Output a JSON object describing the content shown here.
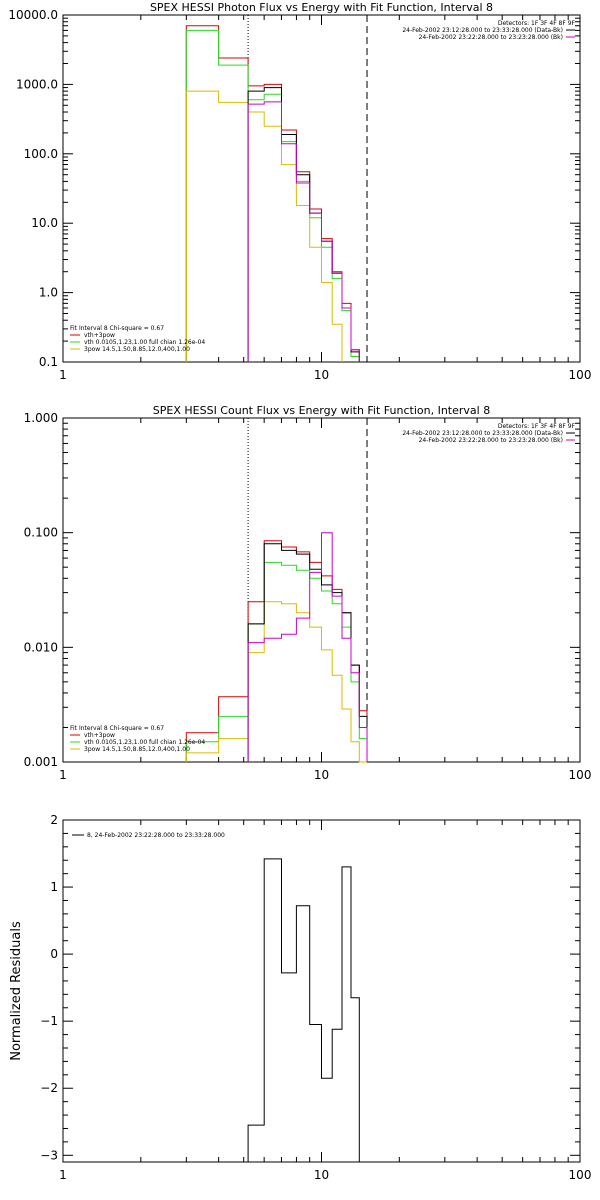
{
  "colors": {
    "red": "#dd0000",
    "green": "#22dd22",
    "yellow": "#ddbb00",
    "magenta": "#cc00cc",
    "black": "#000000"
  },
  "chart_data": [
    {
      "type": "line",
      "title": "SPEX HESSI Photon Flux vs Energy with Fit Function, Interval 8",
      "xscale": "log",
      "yscale": "log",
      "xlim": [
        1,
        100
      ],
      "ylim": [
        0.1,
        10000
      ],
      "xticks": [
        "1",
        "10",
        "100"
      ],
      "yticks": [
        "0.1",
        "1.0",
        "10.0",
        "100.0",
        "1000.0",
        "10000.0"
      ],
      "vlines": [
        {
          "x": 5.2,
          "style": "dotted"
        },
        {
          "x": 15.0,
          "style": "dashed"
        }
      ],
      "fit_lines": [
        "Fit Interval 8   Chi-square = 0.67",
        "vth+3pow",
        "vth 0.0105,1.23,1.00  full chian 1.26e-04",
        "3pow 14.5,1.50,8.85,12.0,400,1.00"
      ],
      "legend_right": [
        "Detectors: 1F 3F 4F 8F 9F",
        "24-Feb-2002 23:12:28.000 to 23:33:28.000 (Data-Bk)",
        "24-Feb-2002 23:22:28.000 to 23:23:28.000 (Bk)"
      ],
      "bin_edges": [
        3,
        4,
        5.2,
        6,
        7,
        8,
        9,
        10,
        11,
        12,
        13,
        14,
        15,
        16
      ],
      "series": [
        {
          "color": "red",
          "values": [
            7000,
            2400,
            950,
            1000,
            220,
            55,
            16,
            6,
            2,
            0.7,
            0.15,
            null,
            null
          ]
        },
        {
          "color": "green",
          "values": [
            6000,
            1900,
            600,
            720,
            150,
            40,
            12,
            4.5,
            1.6,
            0.55,
            0.12,
            null,
            null
          ]
        },
        {
          "color": "yellow",
          "values": [
            800,
            550,
            400,
            250,
            70,
            18,
            4.5,
            1.4,
            0.35,
            null,
            null,
            null,
            null
          ]
        },
        {
          "color": "black",
          "values": [
            null,
            null,
            800,
            900,
            190,
            50,
            14,
            5.5,
            1.9,
            0.6,
            0.14,
            null,
            null
          ]
        },
        {
          "color": "magenta",
          "values": [
            null,
            null,
            520,
            560,
            140,
            38,
            14,
            5.5,
            1.9,
            0.6,
            0.15,
            null,
            null
          ]
        }
      ]
    },
    {
      "type": "line",
      "title": "SPEX HESSI Count Flux vs Energy with Fit Function, Interval 8",
      "xscale": "log",
      "yscale": "log",
      "xlim": [
        1,
        100
      ],
      "ylim": [
        0.001,
        1
      ],
      "xticks": [
        "1",
        "10",
        "100"
      ],
      "yticks": [
        "0.001",
        "0.010",
        "0.100",
        "1.000"
      ],
      "vlines": [
        {
          "x": 5.2,
          "style": "dotted"
        },
        {
          "x": 15.0,
          "style": "dashed"
        }
      ],
      "fit_lines": [
        "Fit Interval 8   Chi-square = 0.67",
        "vth+3pow",
        "vth 0.0105,1.23,1.00  full chian 1.26e-04",
        "3pow 14.5,1.50,8.85,12.0,400,1.00"
      ],
      "legend_right": [
        "Detectors: 1F 3F 4F 8F 9F",
        "24-Feb-2002 23:12:28.000 to 23:33:28.000 (Data-Bk)",
        "24-Feb-2002 23:22:28.000 to 23:23:28.000 (Bk)"
      ],
      "bin_edges": [
        3,
        4,
        5.2,
        6,
        7,
        8,
        9,
        10,
        11,
        12,
        13,
        14,
        15,
        16
      ],
      "series": [
        {
          "color": "red",
          "values": [
            0.0018,
            0.0037,
            0.025,
            0.085,
            0.075,
            0.068,
            0.055,
            0.042,
            0.032,
            0.02,
            0.007,
            0.0028,
            null
          ]
        },
        {
          "color": "green",
          "values": [
            0.0015,
            0.0025,
            0.016,
            0.055,
            0.052,
            0.047,
            0.04,
            0.031,
            0.024,
            0.015,
            0.005,
            0.0016,
            null
          ]
        },
        {
          "color": "yellow",
          "values": [
            0.0012,
            0.0016,
            0.009,
            0.025,
            0.024,
            0.02,
            0.015,
            0.0095,
            0.0057,
            0.0029,
            0.0015,
            0.001,
            null
          ]
        },
        {
          "color": "black",
          "values": [
            null,
            null,
            0.016,
            0.08,
            0.07,
            0.065,
            0.048,
            0.035,
            0.03,
            0.02,
            0.007,
            0.0025,
            null
          ]
        },
        {
          "color": "magenta",
          "values": [
            null,
            null,
            0.011,
            0.012,
            0.013,
            0.018,
            0.045,
            0.1,
            0.028,
            0.012,
            0.006,
            0.002,
            null
          ]
        }
      ]
    },
    {
      "type": "line",
      "xscale": "log",
      "yscale": "linear",
      "xlim": [
        1,
        100
      ],
      "ylim": [
        -3.1,
        2
      ],
      "xticks": [
        "1",
        "10",
        "100"
      ],
      "yticks": [
        "-3",
        "-2",
        "-1",
        "0",
        "1",
        "2"
      ],
      "ylabel": "Normalized Residuals",
      "legend_left": [
        "8, 24-Feb-2002 23:22:28.000 to 23:33:28.000"
      ],
      "bin_edges": [
        5.2,
        6,
        7,
        8,
        9,
        10,
        11,
        12,
        13,
        14,
        15
      ],
      "series": [
        {
          "color": "black",
          "values": [
            -2.55,
            1.42,
            -0.28,
            0.72,
            -1.05,
            -1.85,
            -1.12,
            1.3,
            -0.65,
            null
          ]
        }
      ]
    }
  ]
}
